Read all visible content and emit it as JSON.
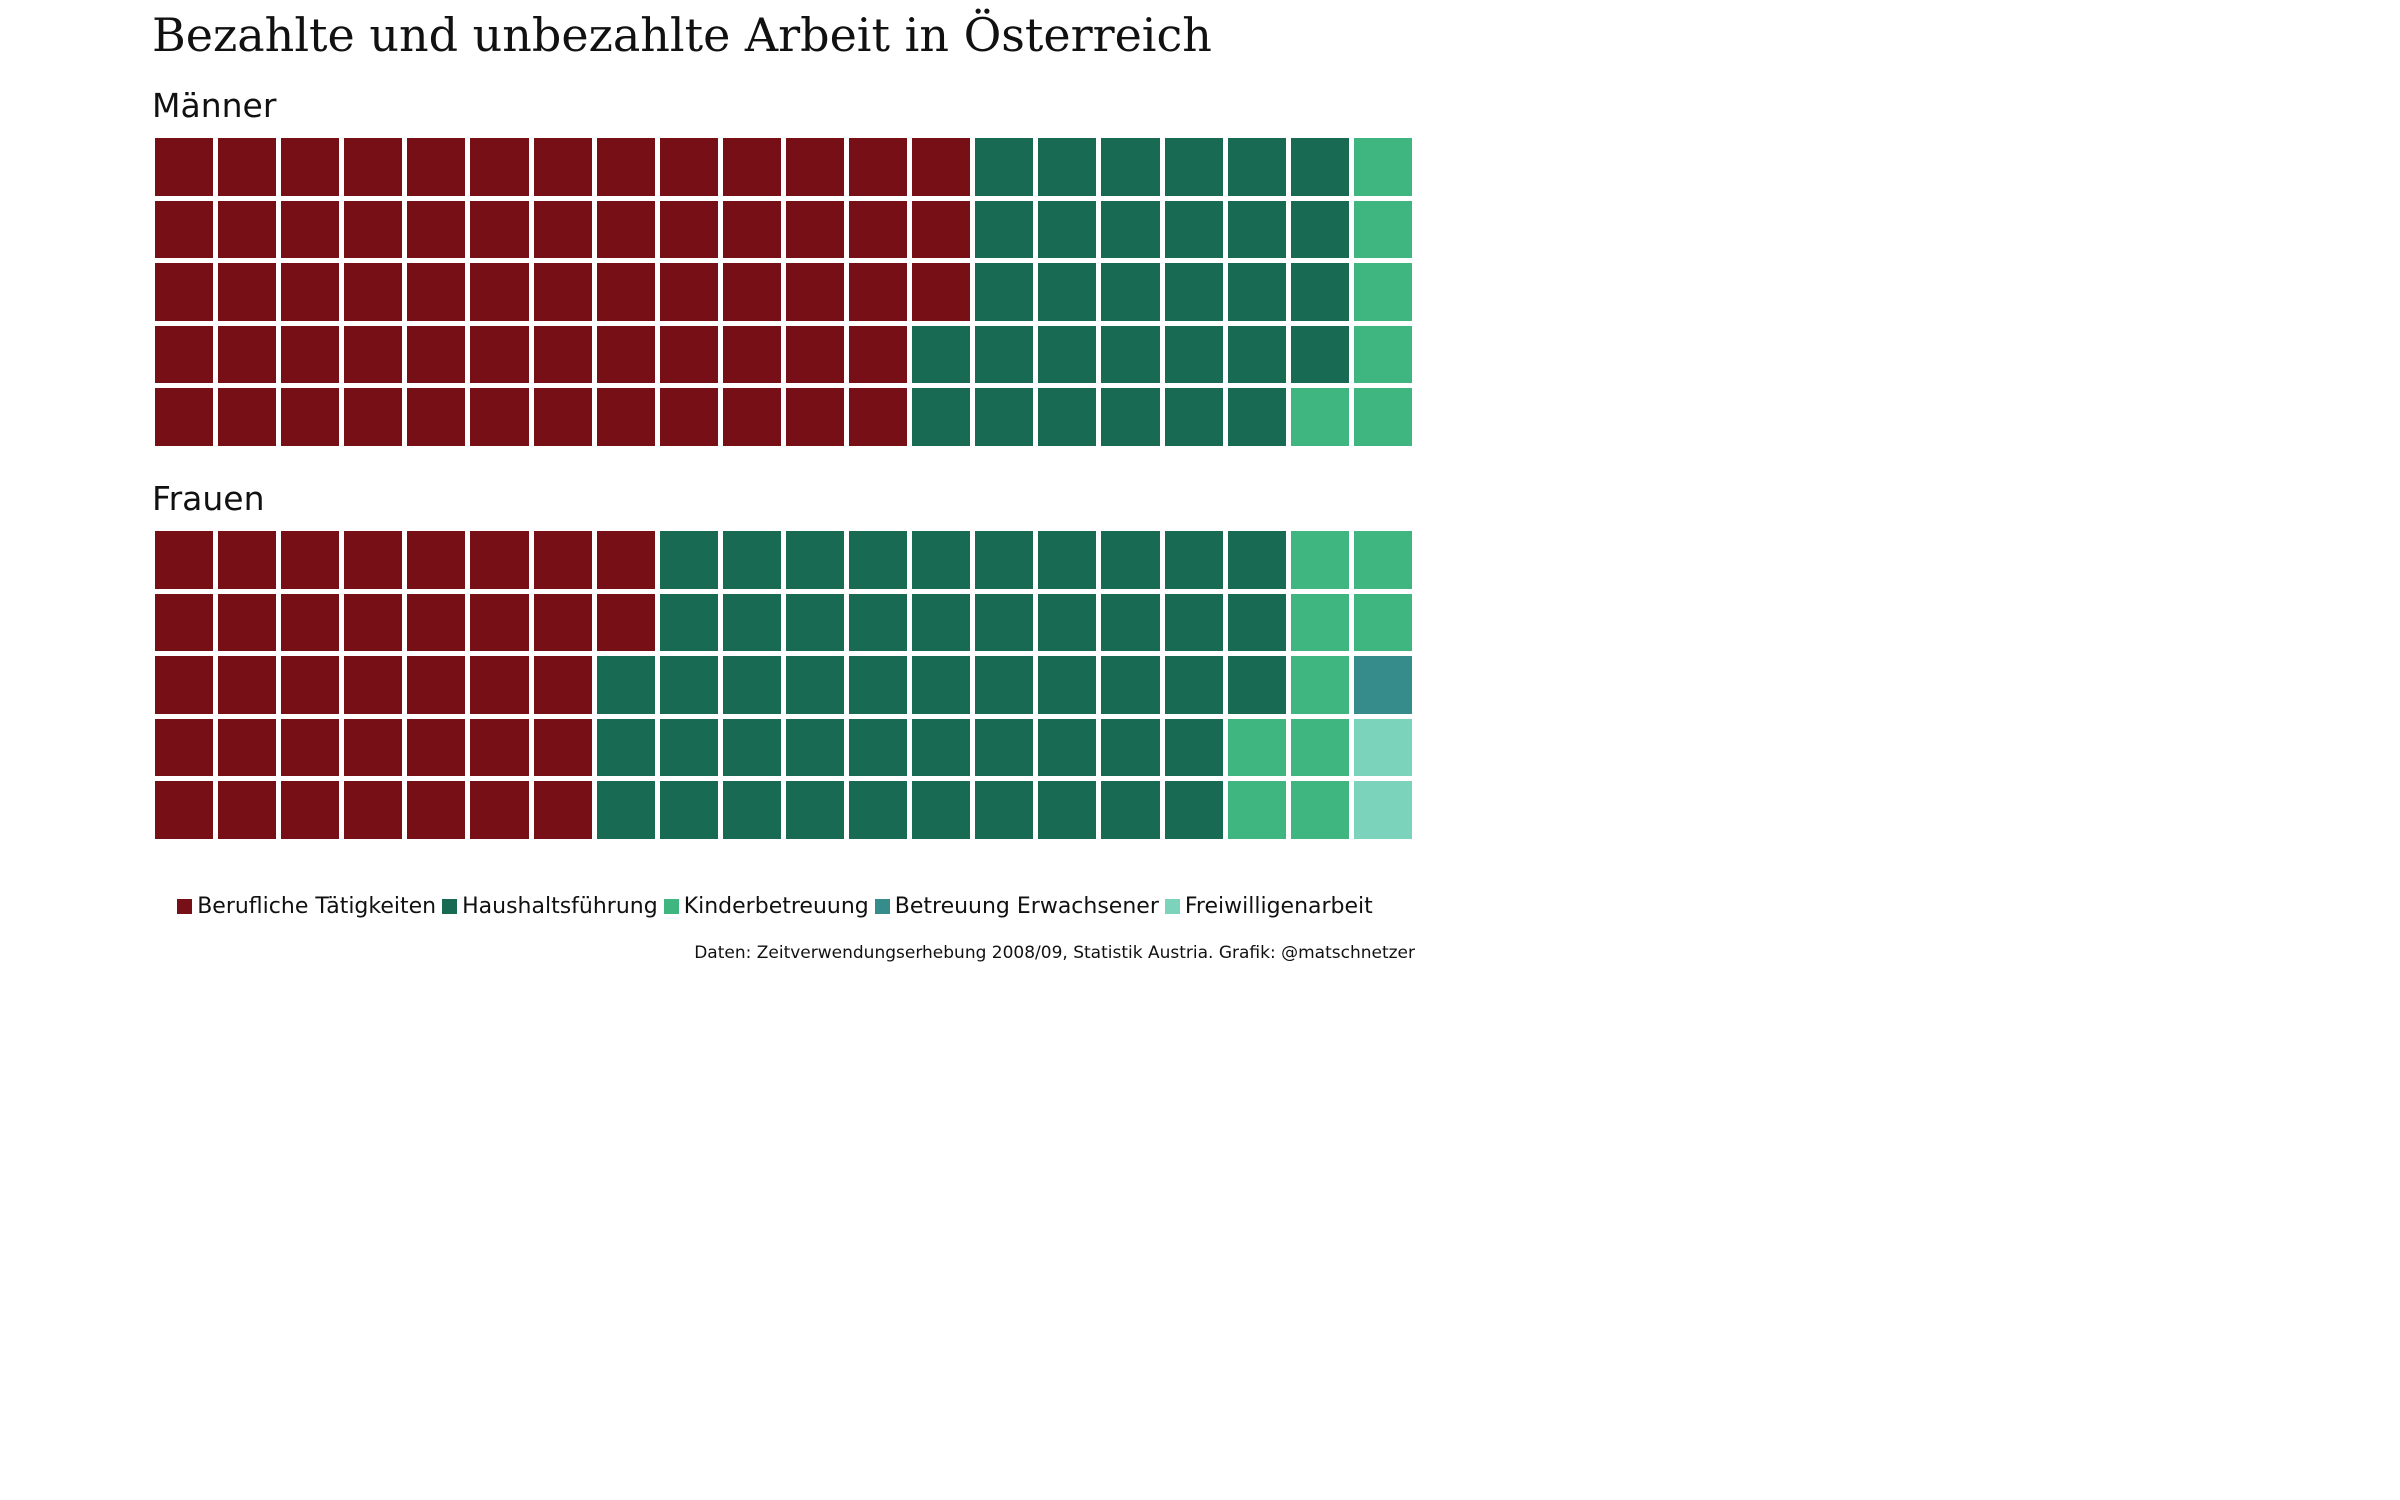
{
  "chart_data": {
    "type": "waffle",
    "title": "Bezahlte und unbezahlte Arbeit in Österreich",
    "caption": "Daten: Zeitverwendungserhebung 2008/09, Statistik Austria. Grafik: @matschnetzer",
    "grid": {
      "columns": 20,
      "rows": 5
    },
    "categories": [
      "Berufliche Tätigkeiten",
      "Haushaltsführung",
      "Kinderbetreuung",
      "Betreuung Erwachsener",
      "Freiwilligenarbeit"
    ],
    "colors": [
      "#760f16",
      "#186a53",
      "#3fb680",
      "#358c8a",
      "#7cd3bc"
    ],
    "legend_position": "bottom",
    "panels": [
      {
        "title": "Männer",
        "values": [
          63,
          31,
          6,
          1,
          3
        ]
      },
      {
        "title": "Frauen",
        "values": [
          37,
          51,
          9,
          1,
          3
        ]
      }
    ]
  }
}
